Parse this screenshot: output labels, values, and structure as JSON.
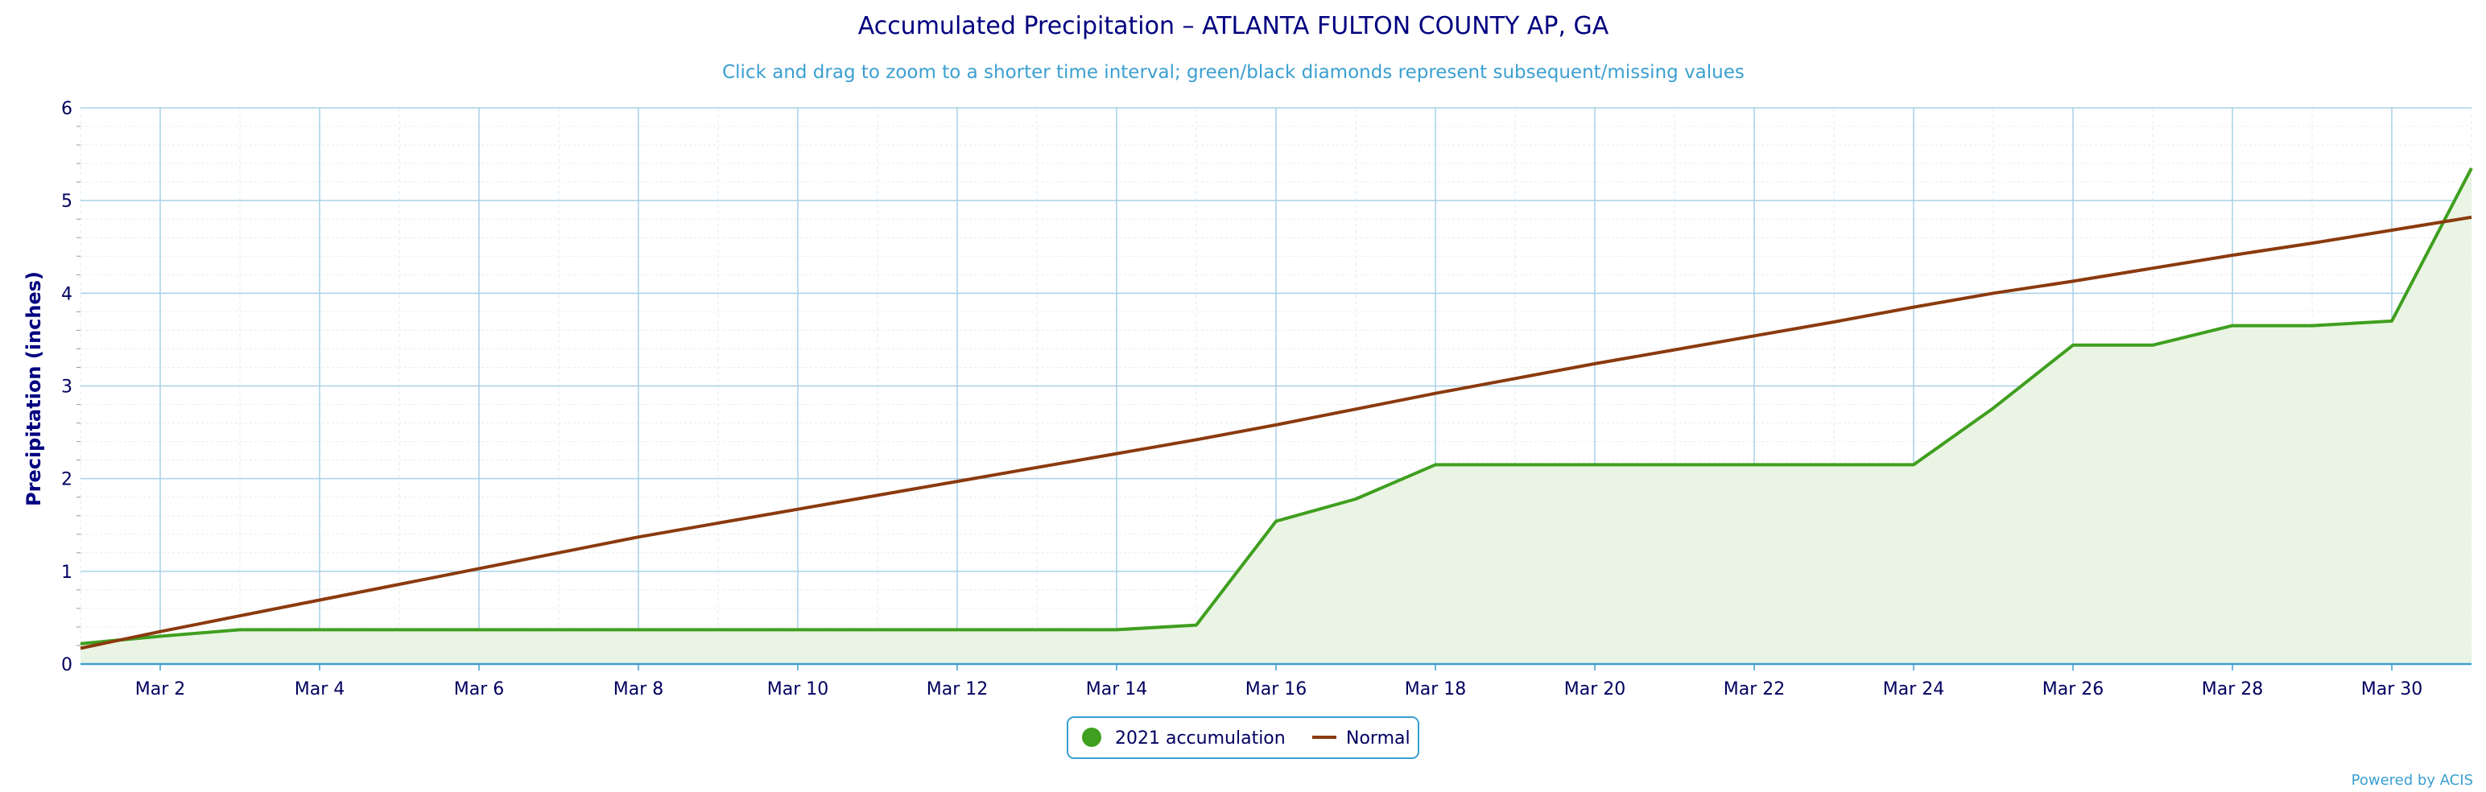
{
  "chart_data": {
    "type": "area",
    "title": "Accumulated Precipitation – ATLANTA FULTON COUNTY AP, GA",
    "subtitle": "Click and drag to zoom to a shorter time interval; green/black diamonds represent subsequent/missing values",
    "ylabel": "Precipitation (inches)",
    "xlabel": "",
    "x_range": [
      1,
      31
    ],
    "ylim": [
      0,
      6
    ],
    "y_ticks": [
      0,
      1,
      2,
      3,
      4,
      5,
      6
    ],
    "x_tick_days": [
      2,
      4,
      6,
      8,
      10,
      12,
      14,
      16,
      18,
      20,
      22,
      24,
      26,
      28,
      30
    ],
    "x_tick_labels": [
      "Mar 2",
      "Mar 4",
      "Mar 6",
      "Mar 8",
      "Mar 10",
      "Mar 12",
      "Mar 14",
      "Mar 16",
      "Mar 18",
      "Mar 20",
      "Mar 22",
      "Mar 24",
      "Mar 26",
      "Mar 28",
      "Mar 30"
    ],
    "grid": true,
    "legend_position": "bottom-center",
    "series": [
      {
        "name": "2021 accumulation",
        "color": "#3f9f1f",
        "fill": "#eaf4e4",
        "x": [
          1,
          2,
          3,
          4,
          5,
          6,
          7,
          8,
          9,
          10,
          11,
          12,
          13,
          14,
          15,
          16,
          17,
          18,
          19,
          20,
          21,
          22,
          23,
          24,
          25,
          26,
          27,
          28,
          29,
          30,
          31
        ],
        "y": [
          0.22,
          0.3,
          0.37,
          0.37,
          0.37,
          0.37,
          0.37,
          0.37,
          0.37,
          0.37,
          0.37,
          0.37,
          0.37,
          0.37,
          0.42,
          1.54,
          1.78,
          2.15,
          2.15,
          2.15,
          2.15,
          2.15,
          2.15,
          2.15,
          2.76,
          3.44,
          3.44,
          3.65,
          3.65,
          3.7,
          5.35
        ]
      },
      {
        "name": "Normal",
        "color": "#8b3a0e",
        "x": [
          1,
          2,
          3,
          4,
          5,
          6,
          7,
          8,
          9,
          10,
          11,
          12,
          13,
          14,
          15,
          16,
          17,
          18,
          19,
          20,
          21,
          22,
          23,
          24,
          25,
          26,
          27,
          28,
          29,
          30,
          31
        ],
        "y": [
          0.17,
          0.35,
          0.52,
          0.69,
          0.86,
          1.03,
          1.2,
          1.37,
          1.52,
          1.67,
          1.82,
          1.97,
          2.12,
          2.27,
          2.42,
          2.58,
          2.75,
          2.92,
          3.08,
          3.24,
          3.39,
          3.54,
          3.69,
          3.85,
          4.0,
          4.13,
          4.27,
          4.41,
          4.54,
          4.68,
          4.82
        ]
      }
    ]
  },
  "credit": "Powered by ACIS"
}
